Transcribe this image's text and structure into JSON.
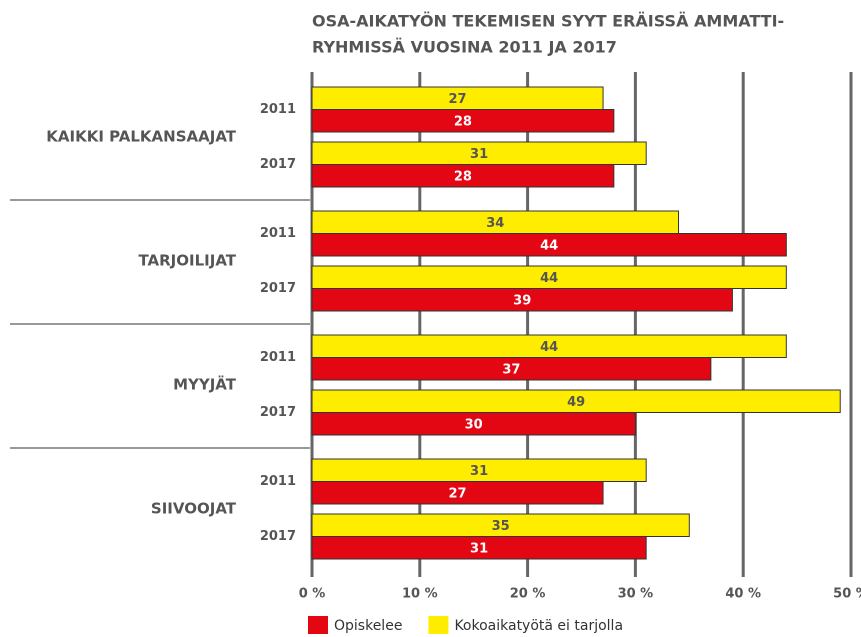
{
  "chart_data": {
    "type": "hbar",
    "title": [
      "OSA-AIKATYÖN TEKEMISEN SYYT ERÄISSÄ AMMATTI-",
      "RYHMISSÄ VUOSINA 2011 JA 2017"
    ],
    "groups": [
      "KAIKKI PALKANSAAJAT",
      "TARJOILIJAT",
      "MYYJÄT",
      "SIIVOOJAT"
    ],
    "categories": [
      "2011",
      "2017",
      "2011",
      "2017",
      "2011",
      "2017",
      "2011",
      "2017"
    ],
    "series": [
      {
        "name": "Opiskelee",
        "color": "#e30613",
        "values": [
          28,
          28,
          44,
          39,
          37,
          30,
          27,
          31
        ]
      },
      {
        "name": "Kokoaikatyötä ei tarjolla",
        "color": "#ffed00",
        "values": [
          27,
          31,
          34,
          44,
          44,
          49,
          31,
          35
        ]
      }
    ],
    "xlim": [
      0,
      50
    ],
    "xticks": [
      {
        "value": 0,
        "label": "0 %"
      },
      {
        "value": 10,
        "label": "10 %"
      },
      {
        "value": 20,
        "label": "20 %"
      },
      {
        "value": 30,
        "label": "30 %"
      },
      {
        "value": 40,
        "label": "40 %"
      },
      {
        "value": 50,
        "label": "50 %"
      }
    ],
    "grid": true
  }
}
